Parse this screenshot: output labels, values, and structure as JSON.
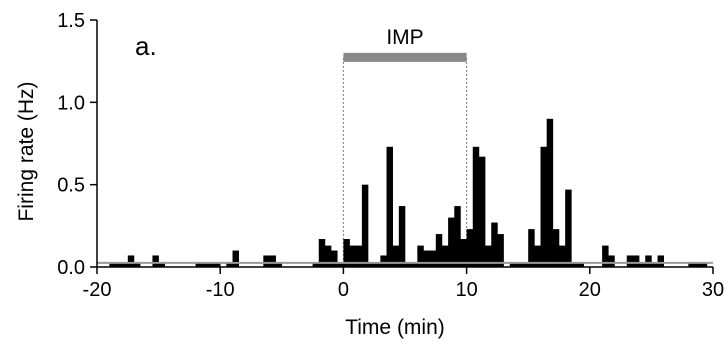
{
  "chart_data": {
    "type": "bar",
    "panel_label": "a.",
    "xlabel": "Time (min)",
    "ylabel": "Firing rate (Hz)",
    "xlim": [
      -20,
      30
    ],
    "ylim": [
      0,
      1.5
    ],
    "xticks": [
      "-20",
      "-10",
      "0",
      "10",
      "20",
      "30"
    ],
    "yticks": [
      "0.0",
      "0.5",
      "1.0",
      "1.5"
    ],
    "bin_width_min": 0.5,
    "bar_color": "#000000",
    "baseline_color": "#999999",
    "baseline_value": 0.025,
    "treatment": {
      "label": "IMP",
      "start": 0,
      "end": 10,
      "color": "#888888",
      "bar_y": 1.27
    },
    "bins": [
      {
        "x": -19.0,
        "y": 0.03
      },
      {
        "x": -18.5,
        "y": 0.03
      },
      {
        "x": -18.0,
        "y": 0.03
      },
      {
        "x": -17.5,
        "y": 0.07
      },
      {
        "x": -17.0,
        "y": 0.03
      },
      {
        "x": -15.5,
        "y": 0.07
      },
      {
        "x": -15.0,
        "y": 0.03
      },
      {
        "x": -12.0,
        "y": 0.03
      },
      {
        "x": -11.5,
        "y": 0.03
      },
      {
        "x": -11.0,
        "y": 0.03
      },
      {
        "x": -10.5,
        "y": 0.03
      },
      {
        "x": -9.5,
        "y": 0.03
      },
      {
        "x": -9.0,
        "y": 0.1
      },
      {
        "x": -6.5,
        "y": 0.07
      },
      {
        "x": -6.0,
        "y": 0.07
      },
      {
        "x": -5.5,
        "y": 0.03
      },
      {
        "x": -2.5,
        "y": 0.03
      },
      {
        "x": -2.0,
        "y": 0.17
      },
      {
        "x": -1.5,
        "y": 0.13
      },
      {
        "x": -1.0,
        "y": 0.1
      },
      {
        "x": -0.5,
        "y": 0.03
      },
      {
        "x": 0.0,
        "y": 0.17
      },
      {
        "x": 0.5,
        "y": 0.13
      },
      {
        "x": 1.0,
        "y": 0.13
      },
      {
        "x": 1.5,
        "y": 0.5
      },
      {
        "x": 2.0,
        "y": 0.03
      },
      {
        "x": 2.5,
        "y": 0.03
      },
      {
        "x": 3.0,
        "y": 0.07
      },
      {
        "x": 3.5,
        "y": 0.73
      },
      {
        "x": 4.0,
        "y": 0.13
      },
      {
        "x": 4.5,
        "y": 0.37
      },
      {
        "x": 5.0,
        "y": 0.03
      },
      {
        "x": 5.5,
        "y": 0.03
      },
      {
        "x": 6.0,
        "y": 0.13
      },
      {
        "x": 6.5,
        "y": 0.1
      },
      {
        "x": 7.0,
        "y": 0.1
      },
      {
        "x": 7.5,
        "y": 0.2
      },
      {
        "x": 8.0,
        "y": 0.13
      },
      {
        "x": 8.5,
        "y": 0.3
      },
      {
        "x": 9.0,
        "y": 0.37
      },
      {
        "x": 9.5,
        "y": 0.17
      },
      {
        "x": 10.0,
        "y": 0.23
      },
      {
        "x": 10.5,
        "y": 0.73
      },
      {
        "x": 11.0,
        "y": 0.67
      },
      {
        "x": 11.5,
        "y": 0.13
      },
      {
        "x": 12.0,
        "y": 0.27
      },
      {
        "x": 12.5,
        "y": 0.2
      },
      {
        "x": 13.5,
        "y": 0.03
      },
      {
        "x": 14.0,
        "y": 0.03
      },
      {
        "x": 14.5,
        "y": 0.03
      },
      {
        "x": 15.0,
        "y": 0.23
      },
      {
        "x": 15.5,
        "y": 0.13
      },
      {
        "x": 16.0,
        "y": 0.73
      },
      {
        "x": 16.5,
        "y": 0.9
      },
      {
        "x": 17.0,
        "y": 0.23
      },
      {
        "x": 17.5,
        "y": 0.13
      },
      {
        "x": 18.0,
        "y": 0.47
      },
      {
        "x": 18.5,
        "y": 0.03
      },
      {
        "x": 19.0,
        "y": 0.03
      },
      {
        "x": 21.0,
        "y": 0.13
      },
      {
        "x": 21.5,
        "y": 0.07
      },
      {
        "x": 23.0,
        "y": 0.07
      },
      {
        "x": 23.5,
        "y": 0.07
      },
      {
        "x": 24.0,
        "y": 0.03
      },
      {
        "x": 24.5,
        "y": 0.07
      },
      {
        "x": 25.0,
        "y": 0.03
      },
      {
        "x": 25.5,
        "y": 0.07
      },
      {
        "x": 28.0,
        "y": 0.03
      },
      {
        "x": 28.5,
        "y": 0.03
      },
      {
        "x": 29.0,
        "y": 0.03
      }
    ]
  }
}
